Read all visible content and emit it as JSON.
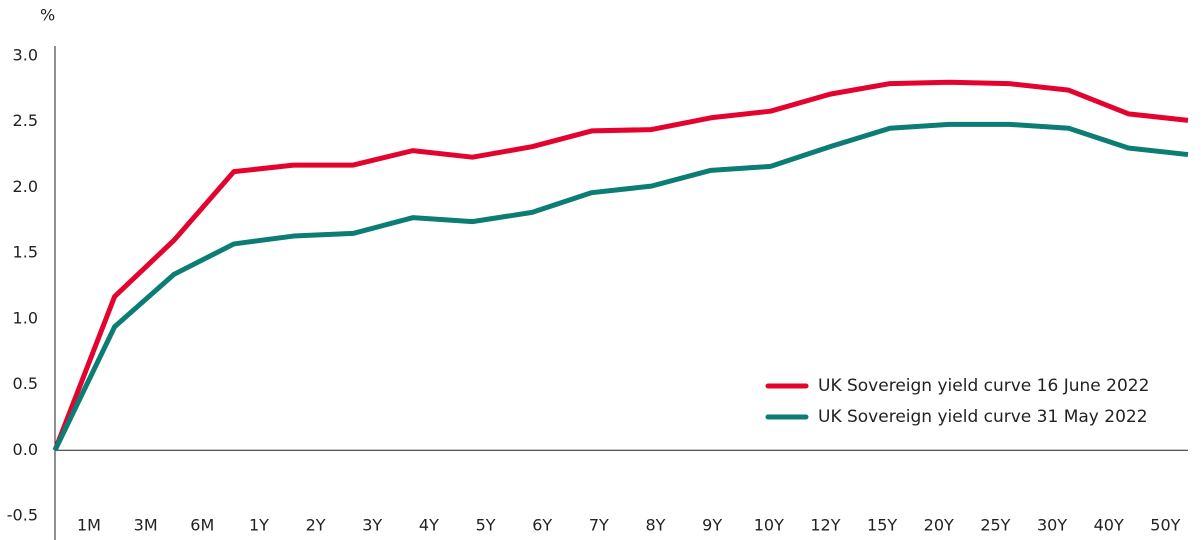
{
  "chart_data": {
    "type": "line",
    "y_label": "%",
    "categories": [
      "1M",
      "3M",
      "6M",
      "1Y",
      "2Y",
      "3Y",
      "4Y",
      "5Y",
      "6Y",
      "7Y",
      "8Y",
      "9Y",
      "10Y",
      "12Y",
      "15Y",
      "20Y",
      "25Y",
      "30Y",
      "40Y",
      "50Y"
    ],
    "series": [
      {
        "name": "UK Sovereign yield curve 16 June 2022",
        "color": "#e4032e",
        "values": [
          0,
          1.17,
          1.6,
          2.12,
          2.17,
          2.17,
          2.28,
          2.23,
          2.31,
          2.43,
          2.44,
          2.53,
          2.58,
          2.71,
          2.79,
          2.8,
          2.79,
          2.74,
          2.56,
          2.51
        ]
      },
      {
        "name": "UK Sovereign yield curve 31 May 2022",
        "color": "#0b7d74",
        "values": [
          0,
          0.94,
          1.34,
          1.57,
          1.63,
          1.65,
          1.77,
          1.74,
          1.81,
          1.96,
          2.01,
          2.13,
          2.16,
          2.31,
          2.45,
          2.48,
          2.48,
          2.45,
          2.3,
          2.25
        ]
      }
    ],
    "ylim": [
      -0.5,
      3.0
    ],
    "yticks": [
      {
        "value": 3.0,
        "label": "3.0"
      },
      2.5,
      {
        "value": 2.0,
        "label": "2.0"
      },
      1.5,
      {
        "value": 1.0,
        "label": "1.0"
      },
      0.5,
      {
        "value": 0,
        "label": "0.0"
      },
      -0.5
    ],
    "legend": "lower right"
  }
}
